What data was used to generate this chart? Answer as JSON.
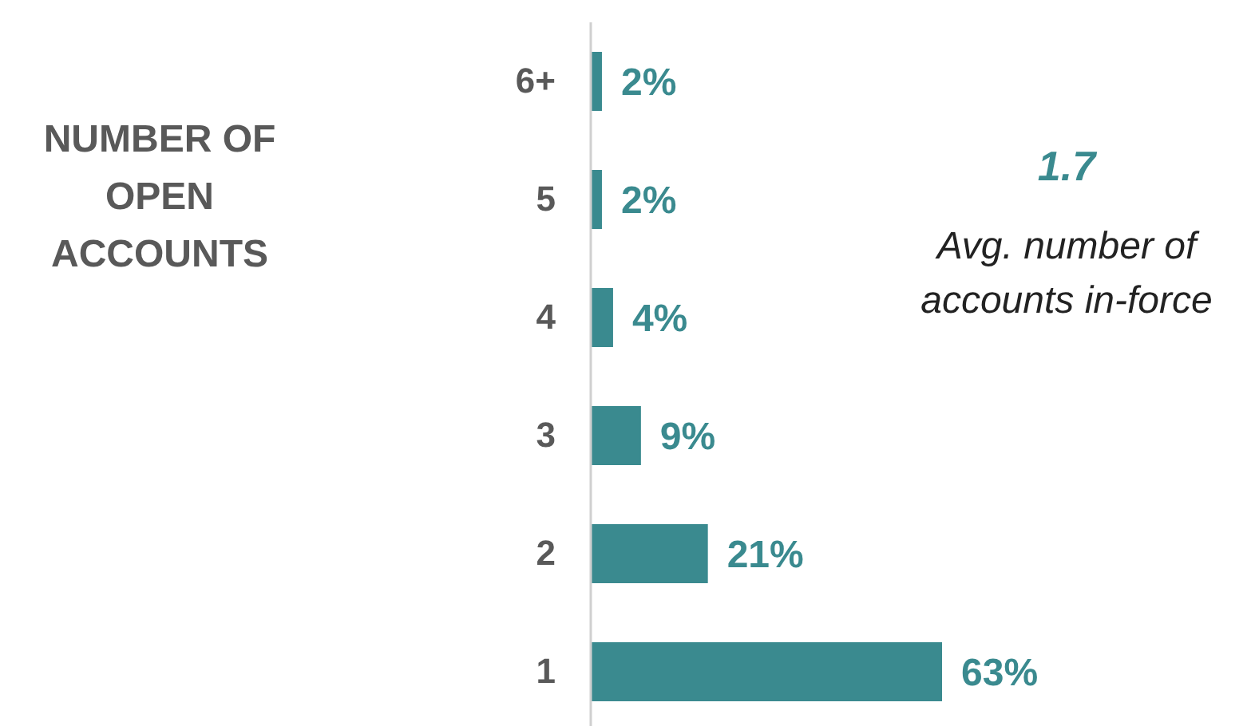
{
  "chart_data": {
    "type": "bar",
    "orientation": "horizontal",
    "categories": [
      "6+",
      "5",
      "4",
      "3",
      "2",
      "1"
    ],
    "values": [
      2,
      2,
      4,
      9,
      21,
      63
    ],
    "value_labels": [
      "2%",
      "2%",
      "4%",
      "9%",
      "21%",
      "63%"
    ],
    "color": "#3a8a8f",
    "annotations": [
      "NUMBER OF OPEN ACCOUNTS",
      "1.7",
      "Avg. number of accounts in-force"
    ]
  }
}
